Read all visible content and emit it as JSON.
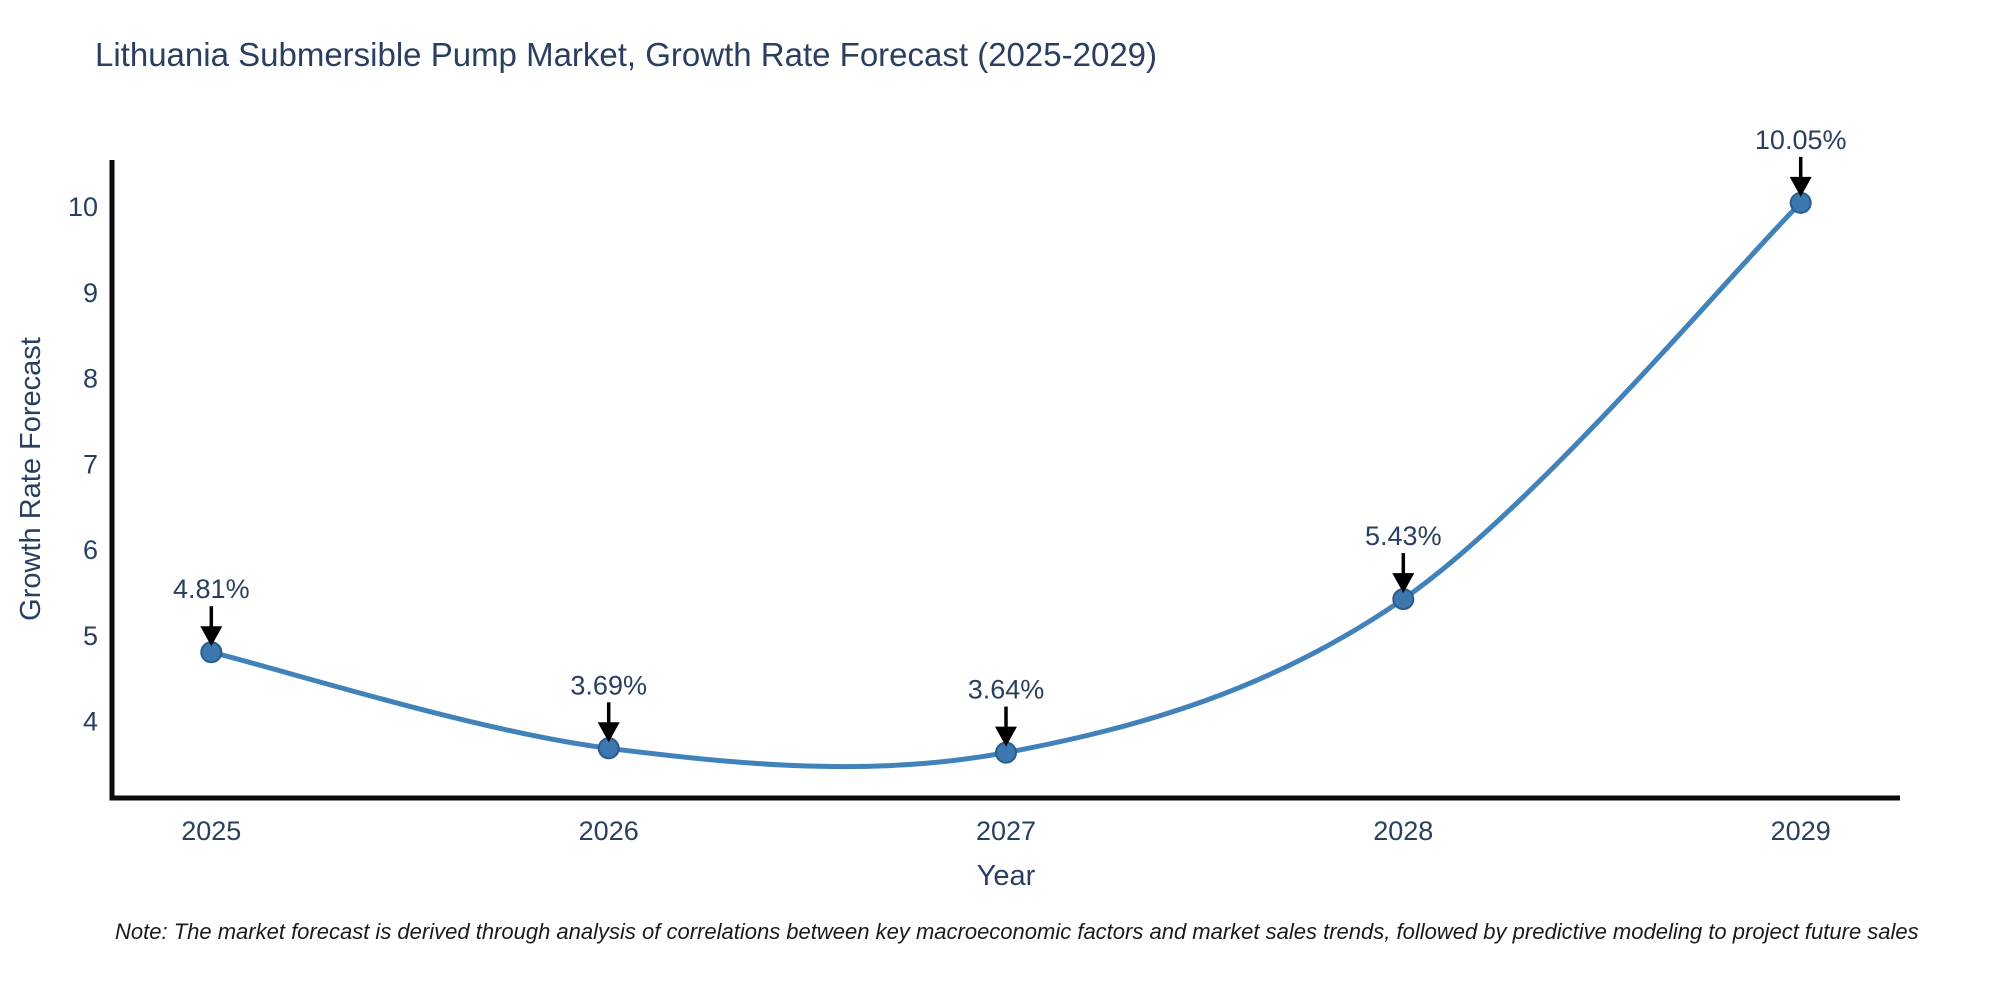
{
  "title": "Lithuania Submersible Pump Market, Growth Rate Forecast (2025-2029)",
  "note": "Note: The market forecast is derived through analysis of correlations between key macroeconomic factors and market sales trends, followed by predictive modeling to project future sales",
  "chart_data": {
    "type": "line",
    "title": "Lithuania Submersible Pump Market, Growth Rate Forecast (2025-2029)",
    "x": [
      2025,
      2026,
      2027,
      2028,
      2029
    ],
    "categories": [
      "2025",
      "2026",
      "2027",
      "2028",
      "2029"
    ],
    "values": [
      4.81,
      3.69,
      3.64,
      5.43,
      10.05
    ],
    "labels": [
      "4.81%",
      "3.69%",
      "3.64%",
      "5.43%",
      "10.05%"
    ],
    "xlabel": "Year",
    "ylabel": "Growth Rate Forecast",
    "yticks": [
      4,
      5,
      6,
      7,
      8,
      9,
      10
    ],
    "ylim": [
      3.11,
      10.55
    ],
    "xlim": [
      2024.75,
      2029.25
    ],
    "grid": false,
    "legend": "none",
    "line_shape": "spline",
    "colors": {
      "line": "#4182bb",
      "marker": "#3c77b0",
      "marker_edge": "#2a5d8e",
      "axis": "#0b0b0b",
      "text": "#2a3f5f",
      "annotation_arrow": "#000000",
      "note_text": "#1a1a1a",
      "background": "#ffffff"
    }
  }
}
